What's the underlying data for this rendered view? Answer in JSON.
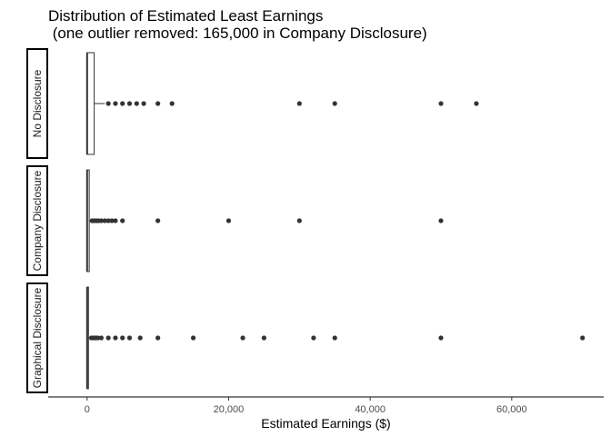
{
  "chart_data": {
    "type": "boxplot",
    "title_line1": "Distribution of Estimated Least Earnings",
    "title_line2": " (one outlier removed: 165,000 in Company Disclosure)",
    "xlabel": "Estimated Earnings ($)",
    "xlim": [
      -5500,
      73000
    ],
    "x_ticks": [
      {
        "value": 0,
        "label": "0"
      },
      {
        "value": 20000,
        "label": "20,000"
      },
      {
        "value": 40000,
        "label": "40,000"
      },
      {
        "value": 60000,
        "label": "60,000"
      }
    ],
    "grid": false,
    "facets": [
      {
        "name": "No Disclosure",
        "box": {
          "q1": 0,
          "median": 0,
          "q3": 1000,
          "whisker_low": 0,
          "whisker_high": 2500
        },
        "outliers": [
          3000,
          4000,
          5000,
          6000,
          7000,
          8000,
          10000,
          12000,
          30000,
          35000,
          50000,
          55000
        ]
      },
      {
        "name": "Company Disclosure",
        "box": {
          "q1": 0,
          "median": 0,
          "q3": 300,
          "whisker_low": 0,
          "whisker_high": 500
        },
        "outliers": [
          700,
          1000,
          1300,
          1600,
          2000,
          2500,
          3000,
          3500,
          4000,
          5000,
          10000,
          20000,
          30000,
          50000
        ]
      },
      {
        "name": "Graphical Disclosure",
        "box": {
          "q1": 0,
          "median": 0,
          "q3": 100,
          "whisker_low": 0,
          "whisker_high": 300
        },
        "outliers": [
          600,
          900,
          1200,
          1500,
          2000,
          3000,
          4000,
          5000,
          6000,
          7500,
          10000,
          15000,
          22000,
          25000,
          32000,
          35000,
          50000,
          70000
        ]
      }
    ]
  }
}
